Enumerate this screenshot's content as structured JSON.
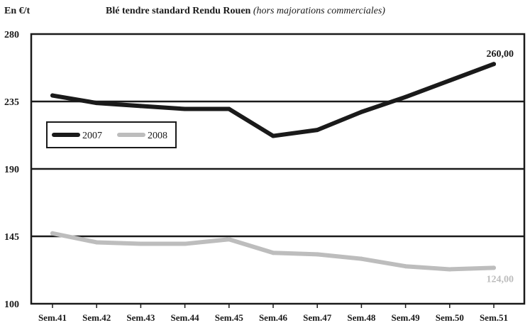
{
  "chart_data": {
    "type": "line",
    "title": "Blé tendre standard Rendu Rouen",
    "subtitle": "(hors majorations commerciales)",
    "ylabel": "En €/t",
    "xlabel": "",
    "categories": [
      "Sem.41",
      "Sem.42",
      "Sem.43",
      "Sem.44",
      "Sem.45",
      "Sem.46",
      "Sem.47",
      "Sem.48",
      "Sem.49",
      "Sem.50",
      "Sem.51"
    ],
    "series": [
      {
        "name": "2007",
        "color": "#1a1a1a",
        "values": [
          239,
          234,
          232,
          230,
          230,
          212,
          216,
          228,
          238,
          249,
          260
        ]
      },
      {
        "name": "2008",
        "color": "#bdbdbd",
        "values": [
          147,
          141,
          140,
          140,
          143,
          134,
          133,
          130,
          125,
          123,
          124
        ]
      }
    ],
    "ylim": [
      100,
      280
    ],
    "yticks": [
      100,
      145,
      190,
      235,
      280
    ],
    "grid": true,
    "legend": "left",
    "annotations": [
      {
        "series": "2007",
        "text": "260,00"
      },
      {
        "series": "2008",
        "text": "124,00"
      }
    ]
  }
}
